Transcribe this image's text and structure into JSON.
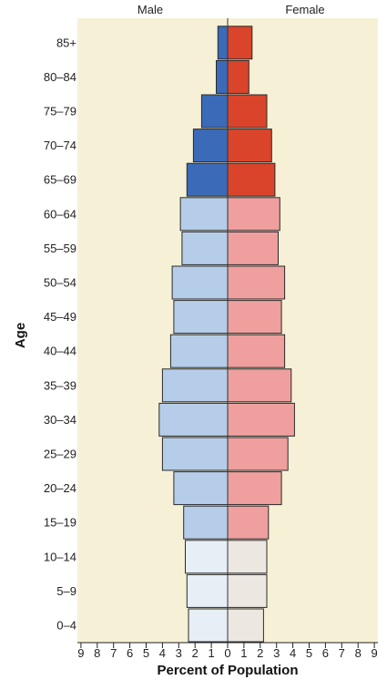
{
  "chart_data": {
    "type": "bar",
    "orientation": "horizontal",
    "subtype": "population-pyramid",
    "title": "",
    "xlabel": "Percent of Population",
    "ylabel": "Age",
    "left_header": "Male",
    "right_header": "Female",
    "xlim": [
      -9,
      9
    ],
    "x_ticks": [
      "9",
      "8",
      "7",
      "6",
      "5",
      "4",
      "3",
      "2",
      "1",
      "0",
      "1",
      "2",
      "3",
      "4",
      "5",
      "6",
      "7",
      "8",
      "9"
    ],
    "categories": [
      "0–4",
      "5–9",
      "10–14",
      "15–19",
      "20–24",
      "25–29",
      "30–34",
      "35–39",
      "40–44",
      "45–49",
      "50–54",
      "55–59",
      "60–64",
      "65–69",
      "70–74",
      "75–79",
      "80–84",
      "85+"
    ],
    "series": [
      {
        "name": "Male",
        "values": [
          2.4,
          2.5,
          2.6,
          2.7,
          3.3,
          4.0,
          4.2,
          4.0,
          3.5,
          3.3,
          3.4,
          2.8,
          2.9,
          2.5,
          2.1,
          1.6,
          0.7,
          0.6
        ],
        "colors": [
          "#e6eef6",
          "#e6eef6",
          "#e6eef6",
          "#b5cde8",
          "#b5cde8",
          "#b5cde8",
          "#b5cde8",
          "#b5cde8",
          "#b5cde8",
          "#b5cde8",
          "#b5cde8",
          "#b5cde8",
          "#b5cde8",
          "#3b6bb8",
          "#3b6bb8",
          "#3b6bb8",
          "#3b6bb8",
          "#3b6bb8"
        ]
      },
      {
        "name": "Female",
        "values": [
          2.2,
          2.4,
          2.4,
          2.5,
          3.3,
          3.7,
          4.1,
          3.9,
          3.5,
          3.3,
          3.5,
          3.1,
          3.2,
          2.9,
          2.7,
          2.4,
          1.3,
          1.5
        ],
        "colors": [
          "#ede7e2",
          "#ede7e2",
          "#ede7e2",
          "#ee9f9e",
          "#ee9f9e",
          "#ee9f9e",
          "#ee9f9e",
          "#ee9f9e",
          "#ee9f9e",
          "#ee9f9e",
          "#ee9f9e",
          "#ee9f9e",
          "#ee9f9e",
          "#d9442b",
          "#d9442b",
          "#d9442b",
          "#d9442b",
          "#d9442b"
        ]
      }
    ],
    "background_color": "#f6f1d6",
    "bar_outline_color": "#2a2a2a",
    "grid": false
  }
}
